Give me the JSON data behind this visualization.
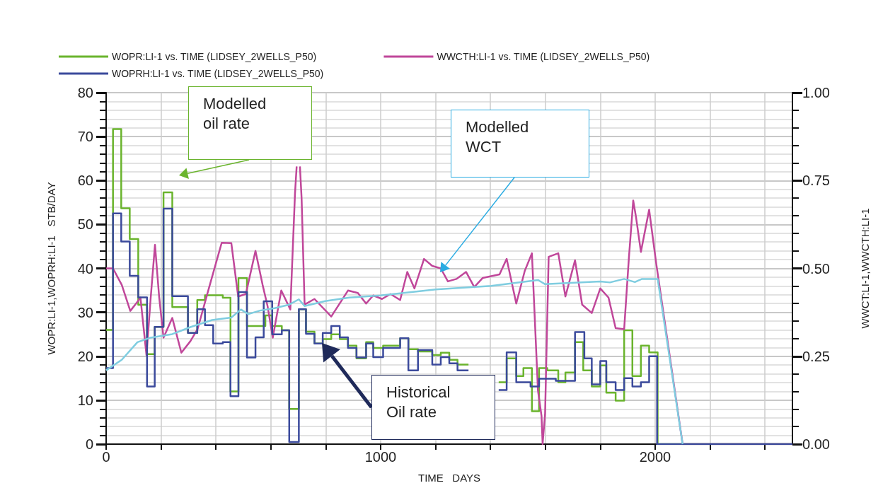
{
  "chart_data": {
    "type": "line",
    "xlabel": "TIME   DAYS",
    "ylabel": "WOPR:LI-1,WOPRH:LI-1   STB/DAY",
    "y2label": "WWCT:LI-1,WWCTH:LI-1",
    "xlim": [
      0,
      2500
    ],
    "xticks": [
      0,
      {
        "value": 200,
        "label": null
      },
      {
        "value": 400,
        "label": null
      },
      {
        "value": 600,
        "label": null
      },
      {
        "value": 800,
        "label": null
      },
      1000,
      {
        "value": 1200,
        "label": null
      },
      {
        "value": 1400,
        "label": null
      },
      {
        "value": 1600,
        "label": null
      },
      {
        "value": 1800,
        "label": null
      },
      2000,
      {
        "value": 2200,
        "label": null
      },
      {
        "value": 2400,
        "label": null
      }
    ],
    "ylim": [
      0,
      80
    ],
    "yticks": [
      0,
      10,
      20,
      30,
      40,
      50,
      60,
      70,
      80
    ],
    "y2lim": [
      0,
      1
    ],
    "y2ticks": [
      {
        "value": 0,
        "label": "0.00"
      },
      {
        "value": 0.25,
        "label": "0.25"
      },
      {
        "value": 0.5,
        "label": "0.50"
      },
      {
        "value": 0.75,
        "label": "0.75"
      },
      {
        "value": 1,
        "label": "1.00"
      }
    ],
    "grid": true,
    "legend": "top left",
    "marker": "none",
    "line_style": "solid",
    "series": [
      {
        "name": "WOPR:LI-1 vs. TIME (LIDSEY_2WELLS_P50)",
        "type": "step",
        "color": "#6ab42d",
        "x": [
          0,
          25,
          55,
          86,
          117,
          149,
          177,
          209,
          241,
          298,
          332,
          360,
          425,
          453,
          482,
          513,
          580,
          605,
          640,
          667,
          702,
          728,
          759,
          789,
          820,
          851,
          881,
          912,
          947,
          973,
          1009,
          1071,
          1101,
          1136,
          1188,
          1219,
          1250,
          1280,
          1320,
          1430,
          1459,
          1494,
          1520,
          1551,
          1577,
          1607,
          1647,
          1673,
          1708,
          1738,
          1769,
          1800,
          1822,
          1856,
          1887,
          1917,
          1948,
          1978,
          2009,
          2500
        ],
        "values": [
          26,
          71.7,
          53.7,
          46.7,
          31.7,
          20.5,
          26.7,
          57.3,
          31.2,
          25.3,
          32.8,
          33.9,
          33.3,
          12,
          37.8,
          26.9,
          29.3,
          26.9,
          25.9,
          8,
          30.7,
          25.6,
          22.9,
          23.9,
          25,
          23.9,
          22.4,
          19.5,
          23.2,
          21.9,
          22.4,
          24.1,
          21.6,
          21.1,
          20.3,
          20.8,
          19.2,
          18.1,
          null,
          14.1,
          19.5,
          15.5,
          17.3,
          7.5,
          17.3,
          16.8,
          14.1,
          16.3,
          23.2,
          16.8,
          13.1,
          17.9,
          11.7,
          9.9,
          25.9,
          15.5,
          22.4,
          20.9,
          0,
          0
        ]
      },
      {
        "name": "WWCTH:LI-1 vs. TIME (LIDSEY_2WELLS_P50)",
        "type": "line",
        "axis": "y2",
        "color": "#c0479a",
        "x": [
          0,
          25,
          57,
          88,
          112,
          125,
          147,
          162,
          178,
          193,
          209,
          241,
          274,
          307,
          333,
          373,
          421,
          456,
          481,
          509,
          544,
          570,
          588,
          607,
          638,
          671,
          688,
          694,
          700,
          706,
          712,
          723,
          759,
          820,
          881,
          917,
          947,
          973,
          1005,
          1036,
          1071,
          1097,
          1123,
          1158,
          1188,
          1219,
          1245,
          1276,
          1311,
          1341,
          1372,
          1433,
          1459,
          1494,
          1525,
          1551,
          1573,
          1586,
          1590,
          1599,
          1612,
          1647,
          1673,
          1708,
          1734,
          1769,
          1800,
          1830,
          1856,
          1887,
          1904,
          1920,
          1930,
          1948,
          1978,
          2004,
          2100,
          2500
        ],
        "values": [
          0.5,
          0.5,
          0.453,
          0.379,
          0.403,
          0.417,
          0.253,
          0.413,
          0.567,
          0.42,
          0.303,
          0.359,
          0.26,
          0.293,
          0.327,
          0.44,
          0.573,
          0.572,
          0.42,
          0.427,
          0.55,
          0.453,
          0.393,
          0.303,
          0.437,
          0.383,
          0.713,
          0.79,
          null,
          0.79,
          0.7,
          0.397,
          0.413,
          0.363,
          0.437,
          0.43,
          0.4,
          0.423,
          0.413,
          0.427,
          0.41,
          0.49,
          0.443,
          0.527,
          0.507,
          0.5,
          0.463,
          0.47,
          0.49,
          0.447,
          0.473,
          0.483,
          0.527,
          0.4,
          0.493,
          0.543,
          0.153,
          0.08,
          0,
          0.087,
          0.533,
          0.543,
          0.42,
          0.523,
          0.397,
          0.373,
          0.443,
          0.417,
          0.33,
          0.327,
          0.527,
          0.693,
          0.647,
          0.547,
          0.667,
          0.513,
          0,
          0
        ]
      },
      {
        "name": "WOPRH:LI-1 vs. TIME (LIDSEY_2WELLS_P50)",
        "type": "step",
        "color": "#3b4a9c",
        "x": [
          0,
          25,
          55,
          86,
          117,
          149,
          177,
          209,
          241,
          298,
          332,
          360,
          390,
          425,
          453,
          482,
          513,
          544,
          574,
          605,
          640,
          667,
          702,
          728,
          759,
          789,
          820,
          851,
          881,
          912,
          947,
          973,
          1009,
          1071,
          1101,
          1136,
          1188,
          1219,
          1250,
          1280,
          1320,
          1430,
          1459,
          1494,
          1546,
          1577,
          1638,
          1708,
          1742,
          1769,
          1800,
          1822,
          1856,
          1887,
          1917,
          1948,
          1978,
          2007,
          2500
        ],
        "values": [
          17.3,
          52.5,
          46.1,
          38.3,
          33.4,
          13.1,
          26.7,
          53.6,
          33.7,
          25.3,
          30.7,
          27.1,
          22.9,
          23.2,
          10.9,
          34.6,
          19.7,
          24.3,
          32.5,
          25,
          25.9,
          0.5,
          30.7,
          25.1,
          22.9,
          25.3,
          26.9,
          24.3,
          21.9,
          19.7,
          22.9,
          19.8,
          21.9,
          24.1,
          16.8,
          21.4,
          18.1,
          19.8,
          18.4,
          16.8,
          null,
          12.3,
          20.9,
          14.1,
          13.1,
          14.9,
          14.4,
          25.5,
          19.5,
          13.6,
          18.9,
          14.1,
          12.3,
          15,
          13.1,
          14.1,
          20,
          0,
          0
        ]
      },
      {
        "axis": "y2",
        "color": "#7fcde0",
        "x": [
          0,
          57,
          114,
          162,
          241,
          307,
          386,
          456,
          491,
          518,
          561,
          614,
          667,
          702,
          723,
          798,
          886,
          1000,
          1201,
          1403,
          1573,
          1599,
          1800,
          1835,
          1887,
          1926,
          1952,
          2009,
          2100
        ],
        "values": [
          0.21,
          0.24,
          0.29,
          0.303,
          0.313,
          0.333,
          0.353,
          0.36,
          0.383,
          0.37,
          0.38,
          0.387,
          0.397,
          0.412,
          0.393,
          0.407,
          0.417,
          0.423,
          0.44,
          0.45,
          0.467,
          0.455,
          0.463,
          0.46,
          0.47,
          0.461,
          0.47,
          0.47,
          0
        ]
      }
    ],
    "annotations": [
      "Modelled\noil rate",
      "Modelled\nWCT",
      "Historical\nOil rate"
    ]
  }
}
